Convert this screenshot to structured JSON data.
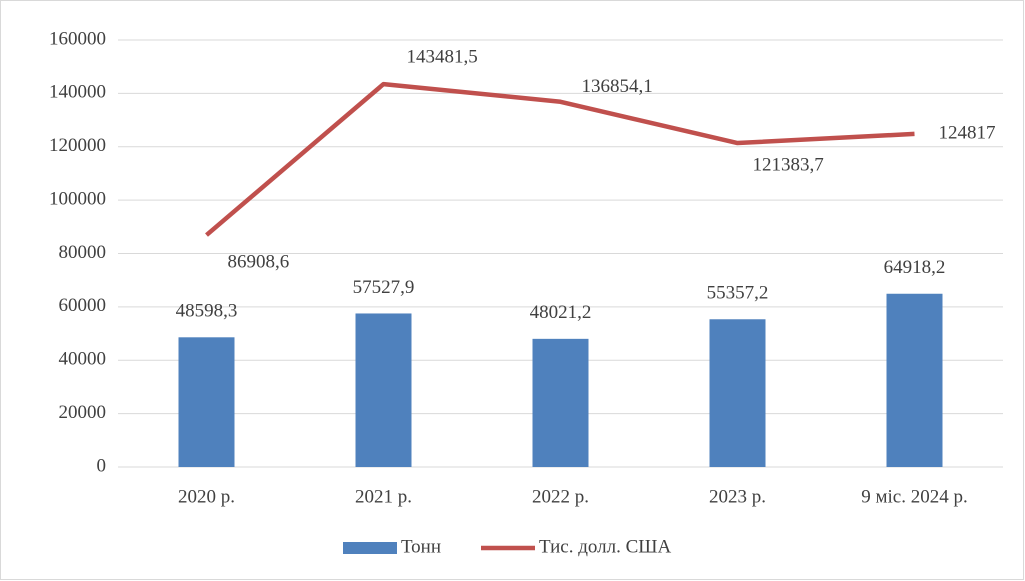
{
  "chart_data": {
    "type": "combo",
    "categories": [
      "2020 р.",
      "2021 р.",
      "2022 р.",
      "2023 р.",
      "9 міс. 2024 р."
    ],
    "series": [
      {
        "name": "Тонн",
        "type": "bar",
        "color": "#4f81bd",
        "values": [
          48598.3,
          57527.9,
          48021.2,
          55357.2,
          64918.2
        ],
        "value_labels": [
          "48598,3",
          "57527,9",
          "48021,2",
          "55357,2",
          "64918,2"
        ]
      },
      {
        "name": "Тис. долл. США",
        "type": "line",
        "color": "#c0504d",
        "values": [
          86908.6,
          143481.5,
          136854.1,
          121383.7,
          124817
        ],
        "value_labels": [
          "86908,6",
          "143481,5",
          "136854,1",
          "121383,7",
          "124817"
        ]
      }
    ],
    "ylim": [
      0,
      160000
    ],
    "yticks": [
      0,
      20000,
      40000,
      60000,
      80000,
      100000,
      120000,
      140000,
      160000
    ],
    "grid": true,
    "legend": "bottom"
  }
}
